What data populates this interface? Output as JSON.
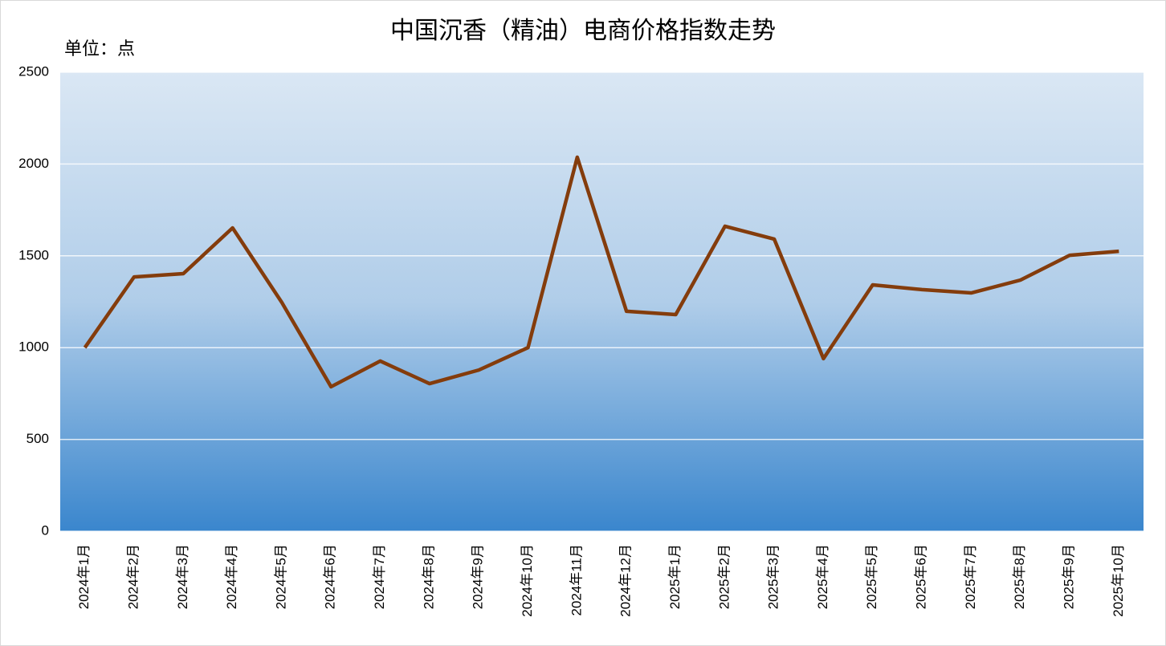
{
  "chart_data": {
    "type": "line",
    "title": "中国沉香（精油）电商价格指数走势",
    "unit_label": "单位：点",
    "categories": [
      "2024年1月",
      "2024年2月",
      "2024年3月",
      "2024年4月",
      "2024年5月",
      "2024年6月",
      "2024年7月",
      "2024年8月",
      "2024年9月",
      "2024年10月",
      "2024年11月",
      "2024年12月",
      "2025年1月",
      "2025年2月",
      "2025年3月",
      "2025年4月",
      "2025年5月",
      "2025年6月",
      "2025年7月",
      "2025年8月",
      "2025年9月",
      "2025年10月"
    ],
    "series": [
      {
        "color": "#843c0c",
        "values": [
          1000,
          1385,
          1403,
          1652,
          1246,
          787,
          927,
          804,
          878,
          1000,
          2037,
          1198,
          1180,
          1661,
          1591,
          940,
          1342,
          1316,
          1298,
          1368,
          1503,
          1525
        ]
      }
    ],
    "ylim": [
      0,
      2500
    ],
    "yticks": [
      0,
      500,
      1000,
      1500,
      2000,
      2500
    ],
    "grid": true
  }
}
